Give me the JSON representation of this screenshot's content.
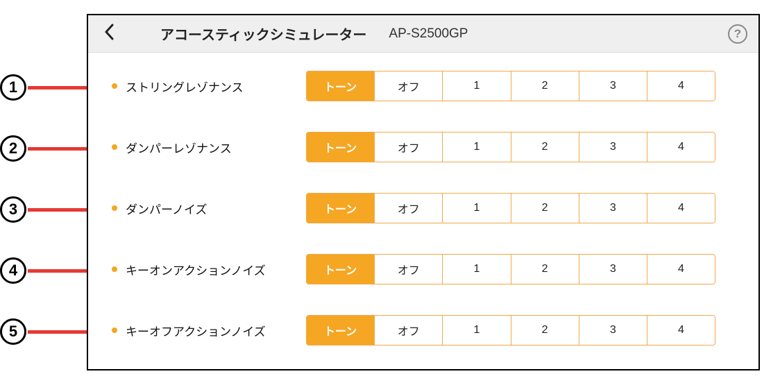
{
  "header": {
    "title": "アコースティックシミュレーター",
    "model": "AP-S2500GP",
    "help_glyph": "?"
  },
  "colors": {
    "accent": "#f5a623",
    "accent_border": "#f0a94a",
    "bullet": "#f5a623",
    "callout_line": "#e53935",
    "header_bg": "#efefef"
  },
  "segment_options": [
    "トーン",
    "オフ",
    "1",
    "2",
    "3",
    "4"
  ],
  "rows": [
    {
      "callout": "1",
      "label": "ストリングレゾナンス",
      "selected_index": 0
    },
    {
      "callout": "2",
      "label": "ダンパーレゾナンス",
      "selected_index": 0
    },
    {
      "callout": "3",
      "label": "ダンパーノイズ",
      "selected_index": 0
    },
    {
      "callout": "4",
      "label": "キーオンアクションノイズ",
      "selected_index": 0
    },
    {
      "callout": "5",
      "label": "キーオフアクションノイズ",
      "selected_index": 0
    }
  ]
}
